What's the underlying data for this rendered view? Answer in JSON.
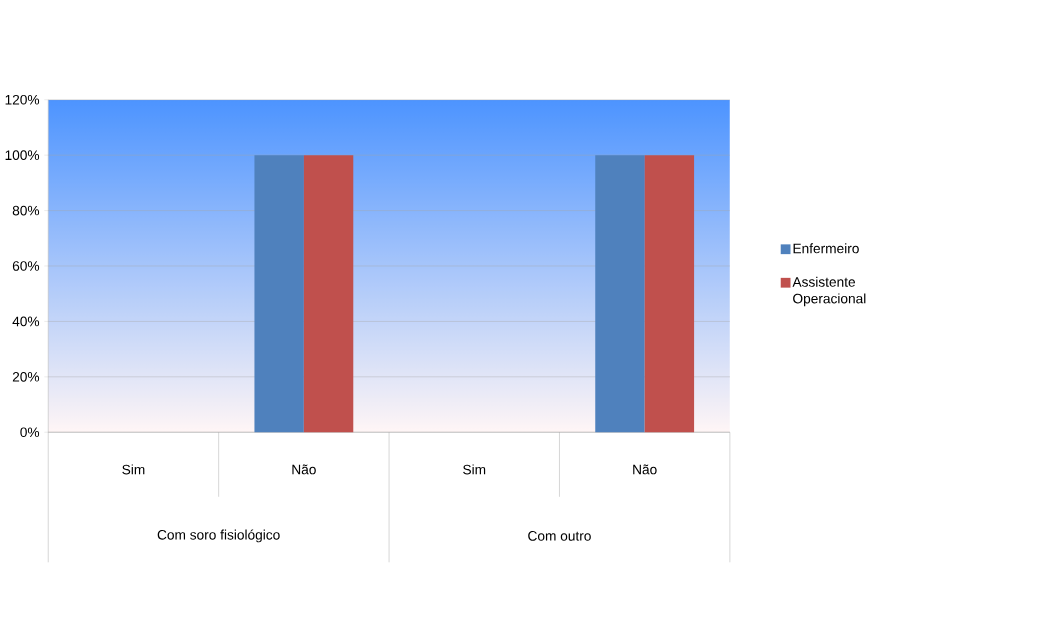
{
  "chart_data": {
    "type": "bar",
    "categories": [
      "Sim",
      "Não",
      "Sim",
      "Não"
    ],
    "series": [
      {
        "name": "Enfermeiro",
        "color": "#4f81bd",
        "values": [
          0,
          100,
          0,
          100
        ]
      },
      {
        "name": "Assistente Operacional",
        "color": "#c0504d",
        "values": [
          0,
          100,
          0,
          100
        ]
      }
    ],
    "ylim": [
      0,
      120
    ],
    "yticks": [
      {
        "value": 0,
        "label": "0%"
      },
      {
        "value": 20,
        "label": "20%"
      },
      {
        "value": 40,
        "label": "40%"
      },
      {
        "value": 60,
        "label": "60%"
      },
      {
        "value": 80,
        "label": "80%"
      },
      {
        "value": 100,
        "label": "100%"
      },
      {
        "value": 120,
        "label": "120%"
      }
    ],
    "grid": "y",
    "legend": "right",
    "annotations": [
      "Com soro fisiológico",
      "Com outro"
    ]
  }
}
